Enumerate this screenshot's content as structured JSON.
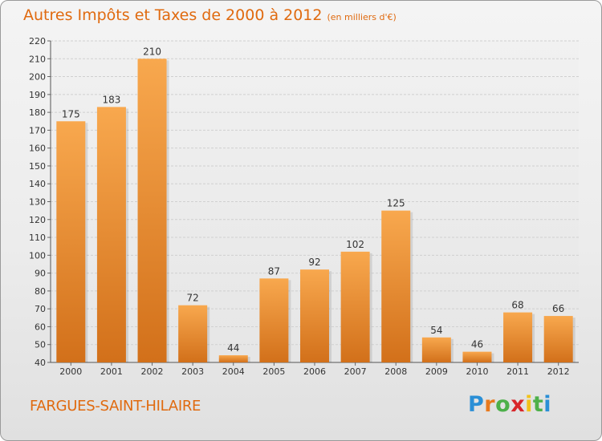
{
  "header": {
    "title": "Autres Impôts et Taxes de 2000 à 2012",
    "subtitle": "(en milliers d'€)"
  },
  "footer": {
    "commune": "FARGUES-SAINT-HILAIRE",
    "logo_letters": [
      "P",
      "r",
      "o",
      "x",
      "i",
      "t",
      "i"
    ],
    "logo_colors": [
      "#2a8fd6",
      "#e87a1e",
      "#4db04a",
      "#d8262a",
      "#f2c21a",
      "#4db04a",
      "#2a8fd6"
    ]
  },
  "chart_data": {
    "type": "bar",
    "categories": [
      "2000",
      "2001",
      "2002",
      "2003",
      "2004",
      "2005",
      "2006",
      "2007",
      "2008",
      "2009",
      "2010",
      "2011",
      "2012"
    ],
    "values": [
      175,
      183,
      210,
      72,
      44,
      87,
      92,
      102,
      125,
      54,
      46,
      68,
      66
    ],
    "ylim": [
      40,
      220
    ],
    "yticks": [
      40,
      50,
      60,
      70,
      80,
      90,
      100,
      110,
      120,
      130,
      140,
      150,
      160,
      170,
      180,
      190,
      200,
      210,
      220
    ],
    "grid": true,
    "bar_color_top": "#f8a84e",
    "bar_color_bottom": "#d2701a"
  }
}
